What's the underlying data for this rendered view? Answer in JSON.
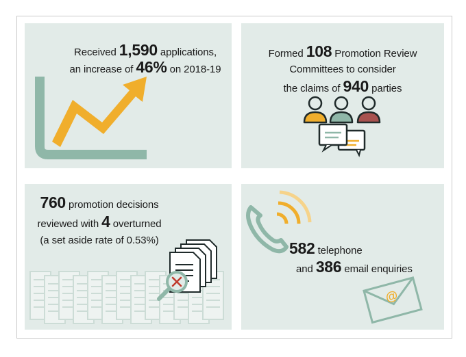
{
  "panels": {
    "applications": {
      "pre": "Received",
      "number": "1,590",
      "post": "applications,",
      "line2_pre": "an increase of",
      "percent": "46%",
      "line2_post": "on 2018-19"
    },
    "committees": {
      "pre": "Formed",
      "number": "108",
      "post": "Promotion Review",
      "line2": "Committees to consider",
      "line3_pre": "the claims of",
      "parties": "940",
      "line3_post": "parties"
    },
    "decisions": {
      "number": "760",
      "post": "promotion decisions",
      "line2_pre": "reviewed with",
      "overturned": "4",
      "line2_post": "overturned",
      "line3": "(a set aside rate of 0.53%)"
    },
    "enquiries": {
      "telephone_number": "582",
      "telephone_label": "telephone",
      "and": "and",
      "email_number": "386",
      "email_label": "email enquiries"
    }
  },
  "colors": {
    "panel_bg": "#e2ebe8",
    "teal": "#8fb7a8",
    "gold": "#f0ae2c",
    "dark": "#1f2a2a",
    "maroon": "#a8524f",
    "cross": "#c0392b",
    "doc_light": "#ccdcd6"
  },
  "icons": [
    "growth-arrow-icon",
    "people-group-icon",
    "documents-review-icon",
    "telephone-icon",
    "email-envelope-icon"
  ]
}
